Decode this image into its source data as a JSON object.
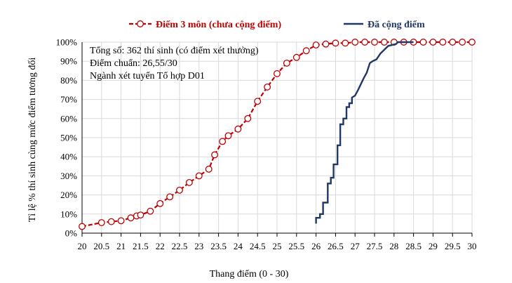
{
  "chart_data": {
    "type": "line",
    "title": "",
    "xlabel": "Thang điểm (0 - 30)",
    "ylabel": "Tỉ lệ % thí sinh cùng mức điểm tương đối",
    "xlim": [
      20,
      30
    ],
    "ylim": [
      0,
      100
    ],
    "x_ticks": [
      "20",
      "20.5",
      "21",
      "21.5",
      "22",
      "22.5",
      "23",
      "23.5",
      "24",
      "24.5",
      "25",
      "25.5",
      "26",
      "26.5",
      "27",
      "27.5",
      "28",
      "28.5",
      "29",
      "29.5",
      "30"
    ],
    "y_ticks": [
      "0%",
      "10%",
      "20%",
      "30%",
      "40%",
      "50%",
      "60%",
      "70%",
      "80%",
      "90%",
      "100%"
    ],
    "grid": true,
    "legend_position": "top",
    "annotations": [
      "Tổng số: 362 thí sinh  (có điểm xét thưởng)",
      "Điểm chuẩn: 26,55/30",
      "Ngành xét tuyển Tổ hợp D01"
    ],
    "series": [
      {
        "name": "Điểm 3 môn (chưa cộng điểm)",
        "color": "#c00000",
        "style": "dashed-circle-markers",
        "x": [
          20,
          20.5,
          20.75,
          21,
          21.25,
          21.4,
          21.5,
          21.75,
          22,
          22.25,
          22.5,
          22.75,
          23,
          23.25,
          23.4,
          23.6,
          23.75,
          24,
          24.25,
          24.5,
          24.75,
          25,
          25.25,
          25.5,
          25.75,
          26,
          26.25,
          26.5,
          26.75,
          27,
          27.25,
          27.5,
          27.75,
          28,
          28.25,
          28.5,
          28.75,
          29,
          29.25,
          29.5,
          29.75,
          30
        ],
        "y": [
          3.5,
          5.5,
          6,
          6.5,
          8,
          9,
          9.5,
          11.5,
          15.5,
          19,
          22.5,
          26.5,
          30,
          33.5,
          41,
          48,
          51,
          54.5,
          60,
          69,
          76.5,
          83.5,
          89,
          92,
          95.5,
          98.5,
          99,
          99.5,
          99.5,
          100,
          100,
          100,
          100,
          100,
          100,
          100,
          100,
          100,
          100,
          100,
          100,
          100
        ]
      },
      {
        "name": "Đã cộng điểm",
        "color": "#1f3864",
        "style": "step-line",
        "x": [
          26,
          26,
          26.1,
          26.1,
          26.18,
          26.18,
          26.3,
          26.3,
          26.38,
          26.38,
          26.45,
          26.45,
          26.55,
          26.55,
          26.62,
          26.62,
          26.7,
          26.7,
          26.78,
          26.78,
          26.85,
          26.85,
          26.92,
          26.92,
          27,
          27.08,
          27.15,
          27.22,
          27.3,
          27.38,
          27.45,
          27.55,
          27.65,
          27.75,
          27.85,
          27.95,
          28.05,
          28.1,
          28.2,
          28.35,
          28.5
        ],
        "y": [
          5,
          8,
          8,
          10,
          10,
          16,
          16,
          26,
          26,
          29,
          29,
          36,
          36,
          46,
          46,
          57,
          57,
          60,
          60,
          66,
          66,
          68,
          68,
          71,
          72,
          75,
          78,
          81,
          84,
          89,
          90,
          91,
          94,
          96,
          98,
          98.5,
          99,
          100,
          100,
          100,
          100
        ]
      }
    ]
  }
}
